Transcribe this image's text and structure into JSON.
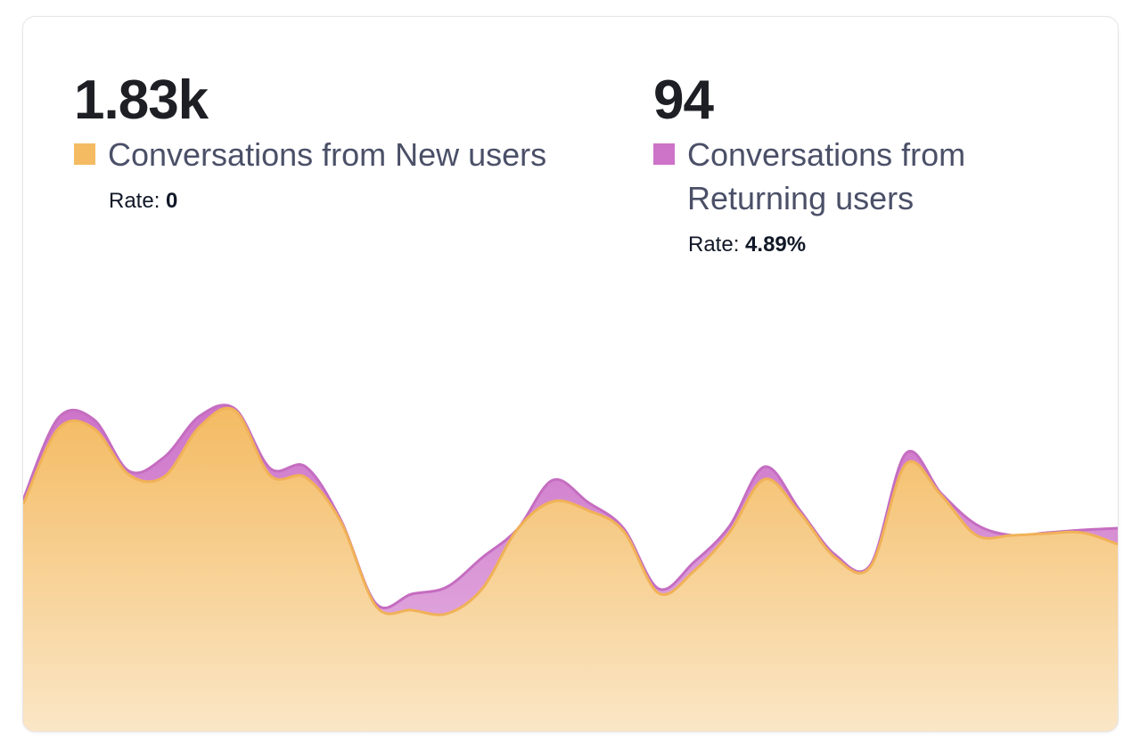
{
  "chart_data": {
    "type": "area",
    "stacked": true,
    "rate_title": "Rate:",
    "categories": [
      null,
      null,
      null,
      null,
      null,
      null,
      null,
      null,
      null,
      null,
      null,
      null,
      null,
      null,
      null,
      null,
      null,
      null,
      null,
      null,
      null,
      null,
      null,
      null,
      null,
      null,
      null,
      null,
      null,
      null,
      null,
      null
    ],
    "ylim": [
      0,
      100
    ],
    "series": [
      {
        "name": "Conversations from New users",
        "color": "#f4bb63",
        "total": {
          "value": 1830,
          "label": "1.83k"
        },
        "rate": 0,
        "values": [
          64.25,
          85.5,
          85.5,
          72.5,
          72,
          86,
          90.5,
          72.25,
          71.75,
          59.25,
          35.5,
          34.5,
          33.5,
          40.5,
          57.25,
          65,
          62.5,
          56.75,
          39.25,
          45.5,
          56.25,
          71.25,
          61.75,
          49.25,
          46.75,
          75.5,
          66.75,
          55.5,
          55.5,
          56,
          56.25,
          53
        ]
      },
      {
        "name": "Conversations from Returning users",
        "color": "#cd73c8",
        "total": 94,
        "rate": {
          "value": 4.89,
          "label": "4.89%"
        },
        "values": [
          1.25,
          3,
          2.5,
          1,
          5.5,
          3,
          0.5,
          2,
          3,
          0.5,
          0.75,
          4.5,
          7.5,
          8.75,
          0,
          6,
          2.25,
          0.75,
          1.25,
          2.5,
          1.75,
          3.5,
          0.75,
          0.75,
          0.5,
          3,
          0.5,
          3,
          0,
          0.25,
          0.75,
          4.5
        ]
      }
    ]
  }
}
